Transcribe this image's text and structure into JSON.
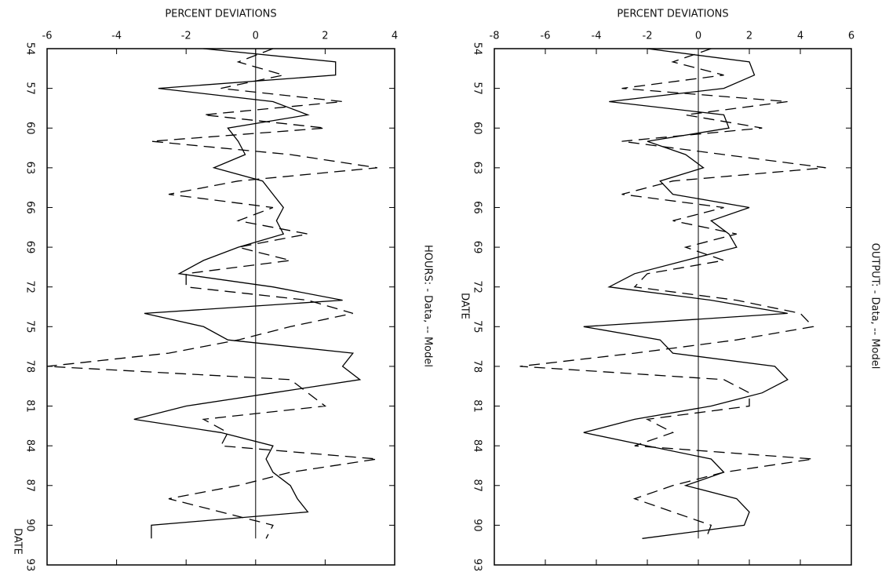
{
  "chart_data": [
    {
      "type": "line",
      "title": "HOURS: - Data, -- Model",
      "xlabel": "DATE",
      "ylabel": "PERCENT DEVIATIONS",
      "x": [
        54,
        55,
        56,
        57,
        58,
        59,
        60,
        61,
        62,
        63,
        64,
        65,
        66,
        67,
        68,
        69,
        70,
        71,
        72,
        73,
        74,
        75,
        76,
        77,
        78,
        79,
        80,
        81,
        82,
        83,
        84,
        85,
        86,
        87,
        88,
        89,
        90,
        91
      ],
      "series": [
        {
          "color": "#000000",
          "dash": "solid",
          "values": [
            -1.5,
            2.3,
            2.3,
            -2.8,
            0.5,
            1.5,
            -0.8,
            -0.5,
            -0.3,
            -1.2,
            0.2,
            0.5,
            0.8,
            0.6,
            0.8,
            -0.5,
            -1.5,
            -2.2,
            0.5,
            2.5,
            -3.2,
            -1.5,
            -0.8,
            2.8,
            2.5,
            3.0,
            0.5,
            -2.0,
            -3.5,
            -1.0,
            0.5,
            0.3,
            0.5,
            1.0,
            1.2,
            1.5,
            -3.0,
            -3.0
          ]
        },
        {
          "color": "#000000",
          "dash": "dashed",
          "values": [
            0.5,
            -0.5,
            0.8,
            -1.0,
            2.5,
            -1.5,
            2.0,
            -3.0,
            1.0,
            3.5,
            -0.5,
            -2.5,
            0.5,
            -0.5,
            1.5,
            -0.5,
            1.0,
            -2.0,
            -2.0,
            1.5,
            2.8,
            1.0,
            -0.5,
            -2.5,
            -6.0,
            1.0,
            1.5,
            2.0,
            -1.5,
            -0.8,
            -1.0,
            3.5,
            1.0,
            -0.5,
            -2.5,
            -1.0,
            0.5,
            0.3
          ]
        }
      ],
      "xlim": [
        54,
        93
      ],
      "xticks": [
        54,
        57,
        60,
        63,
        66,
        69,
        72,
        75,
        78,
        81,
        84,
        87,
        90,
        93
      ],
      "ylim": [
        -6,
        4
      ],
      "yticks": [
        -6,
        -4,
        -2,
        0,
        2,
        4
      ],
      "zero_line": true
    },
    {
      "type": "line",
      "title": "OUTPUT: - Data, -- Model",
      "xlabel": "DATE",
      "ylabel": "PERCENT DEVIATIONS",
      "x": [
        54,
        55,
        56,
        57,
        58,
        59,
        60,
        61,
        62,
        63,
        64,
        65,
        66,
        67,
        68,
        69,
        70,
        71,
        72,
        73,
        74,
        75,
        76,
        77,
        78,
        79,
        80,
        81,
        82,
        83,
        84,
        85,
        86,
        87,
        88,
        89,
        90,
        91
      ],
      "series": [
        {
          "color": "#000000",
          "dash": "solid",
          "values": [
            -2.0,
            2.0,
            2.2,
            1.0,
            -3.5,
            1.0,
            1.2,
            -2.0,
            -0.5,
            0.2,
            -1.5,
            -1.0,
            2.0,
            0.5,
            1.2,
            1.5,
            -0.5,
            -2.5,
            -3.5,
            0.5,
            3.5,
            -4.5,
            -1.5,
            -1.0,
            3.0,
            3.5,
            2.5,
            0.5,
            -2.5,
            -4.5,
            -2.0,
            0.5,
            1.0,
            -0.5,
            1.5,
            2.0,
            1.8,
            -2.2
          ]
        },
        {
          "color": "#000000",
          "dash": "dashed",
          "values": [
            0.5,
            -1.0,
            1.0,
            -3.0,
            3.5,
            -0.5,
            2.5,
            -3.0,
            1.0,
            5.0,
            -1.0,
            -3.0,
            1.0,
            -1.0,
            1.5,
            -0.5,
            1.0,
            -2.0,
            -2.5,
            1.5,
            4.0,
            4.5,
            1.5,
            -2.5,
            -7.0,
            1.0,
            2.0,
            2.0,
            -2.0,
            -1.0,
            -2.5,
            4.5,
            1.0,
            -1.0,
            -2.5,
            -1.0,
            0.5,
            0.3
          ]
        }
      ],
      "xlim": [
        54,
        93
      ],
      "xticks": [
        54,
        57,
        60,
        63,
        66,
        69,
        72,
        75,
        78,
        81,
        84,
        87,
        90,
        93
      ],
      "ylim": [
        -8,
        6
      ],
      "yticks": [
        -8,
        -6,
        -4,
        -2,
        0,
        2,
        4,
        6
      ],
      "zero_line": true
    }
  ]
}
